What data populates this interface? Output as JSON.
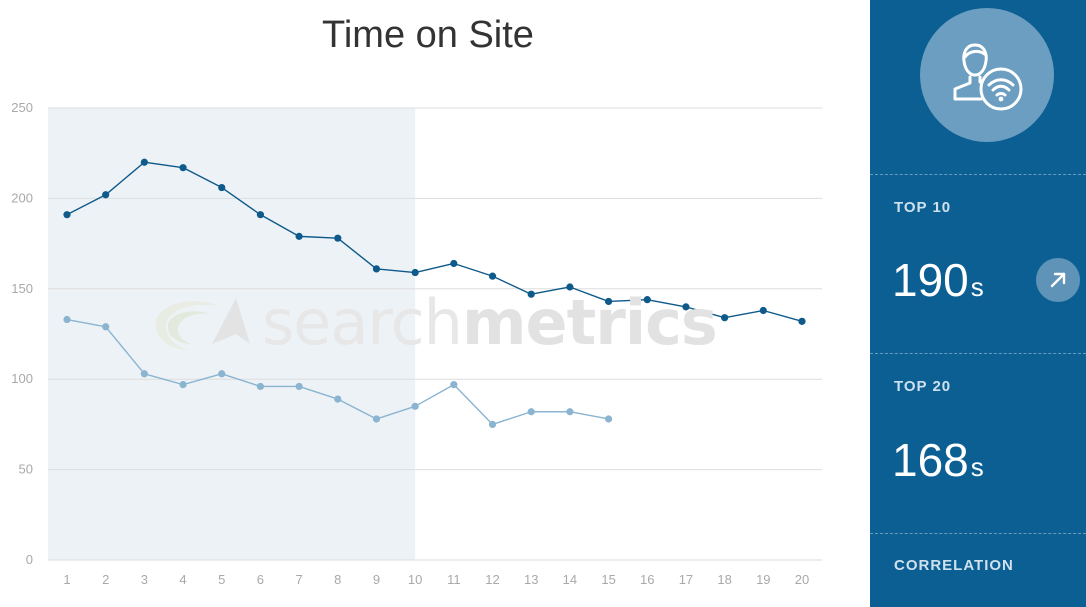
{
  "chart_data": {
    "type": "line",
    "title": "Time on Site",
    "xlabel": "",
    "ylabel": "",
    "x": [
      1,
      2,
      3,
      4,
      5,
      6,
      7,
      8,
      9,
      10,
      11,
      12,
      13,
      14,
      15,
      16,
      17,
      18,
      19,
      20
    ],
    "ylim": [
      0,
      250
    ],
    "yticks": [
      0,
      50,
      100,
      150,
      200,
      250
    ],
    "grid": true,
    "highlight_range": [
      1,
      10
    ],
    "series": [
      {
        "color": "#0e5a8a",
        "values": [
          191,
          202,
          220,
          217,
          206,
          191,
          179,
          178,
          161,
          159,
          164,
          157,
          147,
          151,
          143,
          144,
          140,
          134,
          138,
          132
        ]
      },
      {
        "color": "#8ab4d0",
        "values": [
          133,
          129,
          103,
          97,
          103,
          96,
          96,
          89,
          78,
          85,
          97,
          75,
          82,
          82,
          78,
          null,
          null,
          null,
          null,
          null
        ]
      }
    ]
  },
  "watermark": {
    "text_light": "search",
    "text_bold": "metrics"
  },
  "panel": {
    "icon": "user-wifi-icon",
    "stats": [
      {
        "label": "TOP 10",
        "value": "190",
        "unit": "s",
        "trend_icon": "arrow-up-right-icon"
      },
      {
        "label": "TOP 20",
        "value": "168",
        "unit": "s"
      },
      {
        "label": "CORRELATION"
      }
    ]
  },
  "colors": {
    "panel_bg": "#0c5f93",
    "highlight_bg": "#edf2f7",
    "grid": "#dddddd"
  }
}
